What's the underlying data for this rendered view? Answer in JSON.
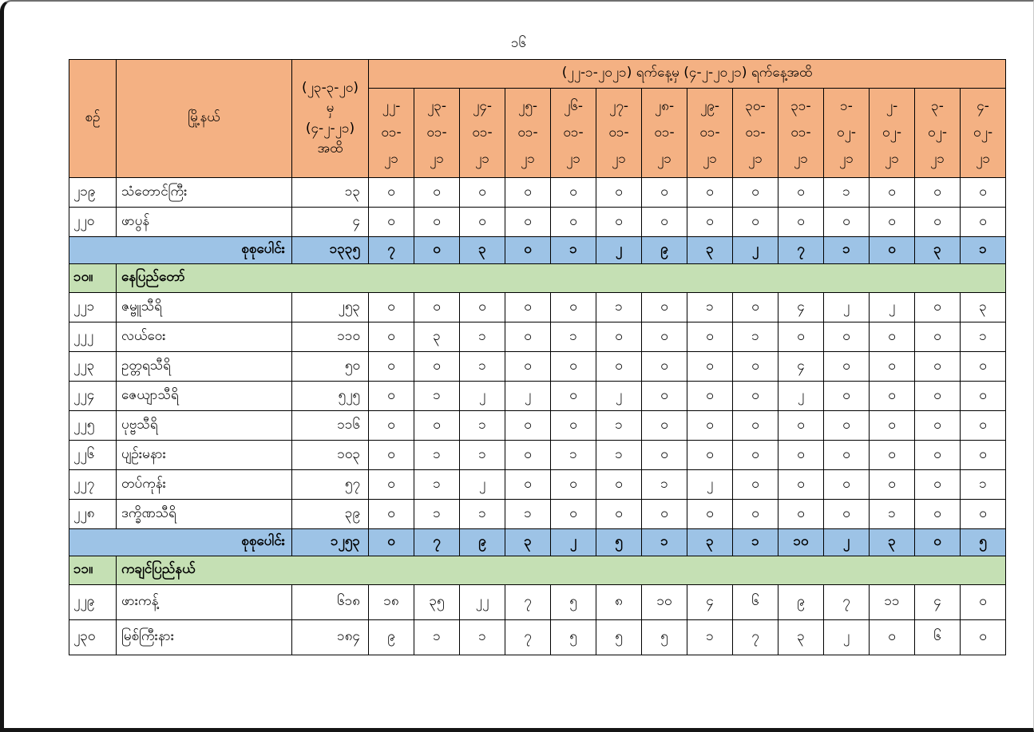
{
  "page": {
    "number": "၁၆"
  },
  "colors": {
    "header_bg": "#F4B183",
    "total_row_bg": "#9DC3E6",
    "section_row_bg": "#C5E0B4",
    "border": "#000000"
  },
  "table": {
    "header": {
      "serial": "စဉ်",
      "township": "မြို့နယ်",
      "cumulative_period": "(၂၃-၃-၂၀)\nမှ\n(၄-၂-၂၁)\nအထိ",
      "date_range": "(၂၂-၁-၂၀၂၁) ရက်နေ့မှ (၄-၂-၂၀၂၁) ရက်နေ့အထိ",
      "dates": [
        "၂၂-\n၀၁-\n၂၁",
        "၂၃-\n၀၁-\n၂၁",
        "၂၄-\n၀၁-\n၂၁",
        "၂၅-\n၀၁-\n၂၁",
        "၂၆-\n၀၁-\n၂၁",
        "၂၇-\n၀၁-\n၂၁",
        "၂၈-\n၀၁-\n၂၁",
        "၂၉-\n၀၁-\n၂၁",
        "၃၀-\n၀၁-\n၂၁",
        "၃၁-\n၀၁-\n၂၁",
        "၁-\n၀၂-\n၂၁",
        "၂-\n၀၂-\n၂၁",
        "၃-\n၀၂-\n၂၁",
        "၄-\n၀၂-\n၂၁"
      ]
    },
    "rows": [
      {
        "type": "data",
        "no": "၂၁၉",
        "township": "သံတောင်ကြီး",
        "cumulative": "၁၃",
        "values": [
          "၀",
          "၀",
          "၀",
          "၀",
          "၀",
          "၀",
          "၀",
          "၀",
          "၀",
          "၀",
          "၁",
          "၀",
          "၀",
          "၀"
        ]
      },
      {
        "type": "data",
        "no": "၂၂၀",
        "township": "ဖာပွန်",
        "cumulative": "၄",
        "values": [
          "၀",
          "၀",
          "၀",
          "၀",
          "၀",
          "၀",
          "၀",
          "၀",
          "၀",
          "၀",
          "၀",
          "၀",
          "၀",
          "၀"
        ]
      },
      {
        "type": "total",
        "label": "စုစုပေါင်း",
        "cumulative": "၁၃၃၅",
        "values": [
          "၇",
          "၀",
          "၃",
          "၀",
          "၁",
          "၂",
          "၉",
          "၃",
          "၂",
          "၇",
          "၁",
          "၀",
          "၃",
          "၁"
        ]
      },
      {
        "type": "section",
        "no": "၁၀။",
        "title": "နေပြည်တော်"
      },
      {
        "type": "data",
        "no": "၂၂၁",
        "township": "ဇမ္ဗူသီရိ",
        "cumulative": "၂၅၃",
        "values": [
          "၀",
          "၀",
          "၀",
          "၀",
          "၀",
          "၁",
          "၀",
          "၁",
          "၀",
          "၄",
          "၂",
          "၂",
          "၀",
          "၃"
        ]
      },
      {
        "type": "data",
        "no": "၂၂၂",
        "township": "လယ်ဝေး",
        "cumulative": "၁၁၀",
        "values": [
          "၀",
          "၃",
          "၁",
          "၀",
          "၁",
          "၀",
          "၀",
          "၀",
          "၁",
          "၀",
          "၀",
          "၀",
          "၀",
          "၁"
        ]
      },
      {
        "type": "data",
        "no": "၂၂၃",
        "township": "ဥတ္တရသီရိ",
        "cumulative": "၅၀",
        "values": [
          "၀",
          "၀",
          "၁",
          "၀",
          "၀",
          "၀",
          "၀",
          "၀",
          "၀",
          "၄",
          "၀",
          "၀",
          "၀",
          "၀"
        ]
      },
      {
        "type": "data",
        "no": "၂၂၄",
        "township": "ဇေယျာသီရိ",
        "cumulative": "၅၂၅",
        "values": [
          "၀",
          "၁",
          "၂",
          "၂",
          "၀",
          "၂",
          "၀",
          "၀",
          "၀",
          "၂",
          "၀",
          "၀",
          "၀",
          "၀"
        ]
      },
      {
        "type": "data",
        "no": "၂၂၅",
        "township": "ပုဗ္ဗသီရိ",
        "cumulative": "၁၁၆",
        "values": [
          "၀",
          "၀",
          "၁",
          "၀",
          "၀",
          "၁",
          "၀",
          "၀",
          "၀",
          "၀",
          "၀",
          "၀",
          "၀",
          "၀"
        ]
      },
      {
        "type": "data",
        "no": "၂၂၆",
        "township": "ပျဉ်းမနား",
        "cumulative": "၁၀၃",
        "values": [
          "၀",
          "၁",
          "၁",
          "၀",
          "၁",
          "၁",
          "၀",
          "၀",
          "၀",
          "၀",
          "၀",
          "၀",
          "၀",
          "၀"
        ]
      },
      {
        "type": "data",
        "no": "၂၂၇",
        "township": "တပ်ကုန်း",
        "cumulative": "၅၇",
        "values": [
          "၀",
          "၁",
          "၂",
          "၀",
          "၀",
          "၀",
          "၁",
          "၂",
          "၀",
          "၀",
          "၀",
          "၀",
          "၀",
          "၁"
        ]
      },
      {
        "type": "data",
        "no": "၂၂၈",
        "township": "ဒက္ခိဏသီရိ",
        "cumulative": "၃၉",
        "values": [
          "၀",
          "၁",
          "၁",
          "၁",
          "၀",
          "၀",
          "၀",
          "၀",
          "၀",
          "၀",
          "၀",
          "၁",
          "၀",
          "၀"
        ]
      },
      {
        "type": "total",
        "label": "စုစုပေါင်း",
        "cumulative": "၁၂၅၃",
        "values": [
          "၀",
          "၇",
          "၉",
          "၃",
          "၂",
          "၅",
          "၁",
          "၃",
          "၁",
          "၁၀",
          "၂",
          "၃",
          "၀",
          "၅"
        ]
      },
      {
        "type": "section",
        "no": "၁၁။",
        "title": "ကချင်ပြည်နယ်"
      },
      {
        "type": "data",
        "no": "၂၂၉",
        "township": "ဖားကန့်",
        "cumulative": "၆၁၈",
        "values": [
          "၁၈",
          "၃၅",
          "၂၂",
          "၇",
          "၅",
          "၈",
          "၁၀",
          "၄",
          "၆",
          "၉",
          "၇",
          "၁၁",
          "၄",
          "၀"
        ]
      },
      {
        "type": "data",
        "no": "၂၃၀",
        "township": "မြစ်ကြီးနား",
        "cumulative": "၁၈၄",
        "values": [
          "၉",
          "၁",
          "၁",
          "၇",
          "၅",
          "၅",
          "၅",
          "၁",
          "၇",
          "၃",
          "၂",
          "၀",
          "၆",
          "၀"
        ]
      }
    ]
  }
}
